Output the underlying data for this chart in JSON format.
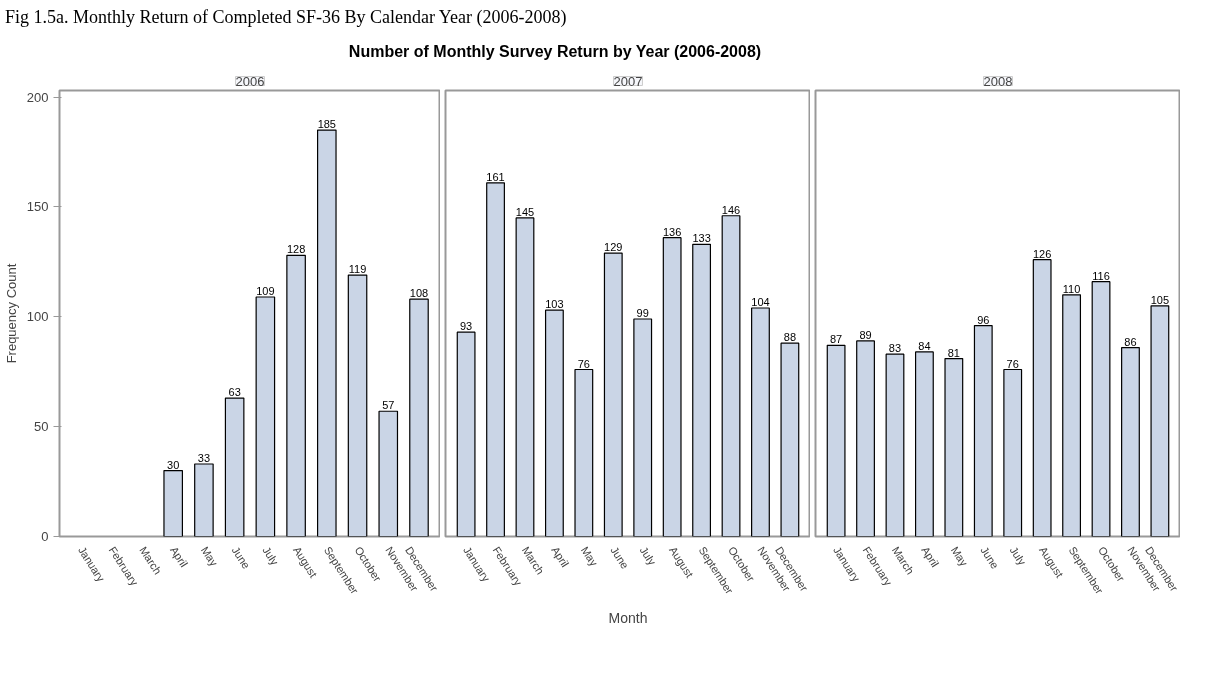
{
  "chart_data": [
    {
      "type": "bar",
      "subtitle": "2006",
      "ylabel": "Frequency Count",
      "annotations": [
        "Fig 1.5a. Monthly Return of Completed SF-36 By Calendar Year (2006-2008)"
      ],
      "categories": [
        "January",
        "February",
        "March",
        "April",
        "May",
        "June",
        "July",
        "August",
        "September",
        "October",
        "November",
        "December"
      ],
      "values": [
        null,
        null,
        null,
        30,
        33,
        63,
        109,
        128,
        185,
        119,
        57,
        108
      ],
      "color": "#cad5e6",
      "ylim": [
        0,
        203
      ],
      "yticks": [
        0,
        50,
        100,
        150,
        200
      ],
      "data_labels": true
    },
    {
      "type": "bar",
      "title": "Number of Monthly Survey Return by Year (2006-2008)",
      "subtitle": "2007",
      "xlabel": "Month",
      "categories": [
        "January",
        "February",
        "March",
        "April",
        "May",
        "June",
        "July",
        "August",
        "September",
        "October",
        "November",
        "December"
      ],
      "values": [
        93,
        161,
        145,
        103,
        76,
        129,
        99,
        136,
        133,
        146,
        104,
        88
      ],
      "color": "#cad5e6",
      "ylim": [
        0,
        203
      ],
      "yticks": [
        0,
        50,
        100,
        150,
        200
      ],
      "data_labels": true,
      "tick_labels": "x"
    },
    {
      "type": "bar",
      "subtitle": "2008",
      "categories": [
        "January",
        "February",
        "March",
        "April",
        "May",
        "June",
        "July",
        "August",
        "September",
        "October",
        "November",
        "December"
      ],
      "values": [
        87,
        89,
        83,
        84,
        81,
        96,
        76,
        126,
        110,
        116,
        86,
        105
      ],
      "color": "#cad5e6",
      "ylim": [
        0,
        203
      ],
      "yticks": [
        0,
        50,
        100,
        150,
        200
      ],
      "data_labels": true,
      "tick_labels": "x"
    }
  ]
}
